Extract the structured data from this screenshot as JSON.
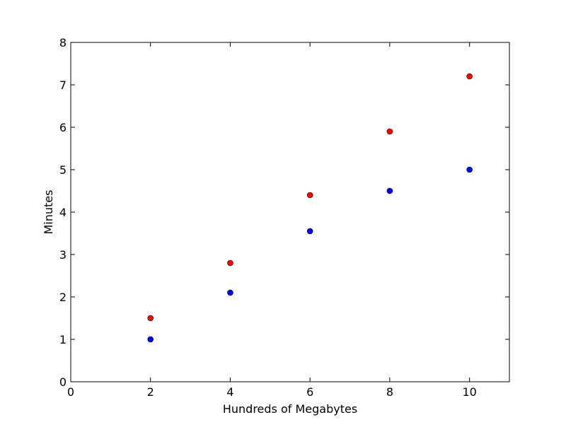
{
  "chart_data": {
    "type": "scatter",
    "title": "",
    "xlabel": "Hundreds of Megabytes",
    "ylabel": "Minutes",
    "xlim": [
      0,
      11
    ],
    "ylim": [
      0,
      8
    ],
    "xticks": [
      0,
      2,
      4,
      6,
      8,
      10
    ],
    "yticks": [
      0,
      1,
      2,
      3,
      4,
      5,
      6,
      7,
      8
    ],
    "grid": false,
    "legend": "none",
    "series": [
      {
        "color": "#ff0000",
        "points": [
          {
            "x": 2,
            "y": 1.5
          },
          {
            "x": 4,
            "y": 2.8
          },
          {
            "x": 6,
            "y": 4.4
          },
          {
            "x": 8,
            "y": 5.9
          },
          {
            "x": 10,
            "y": 7.2
          }
        ]
      },
      {
        "color": "#0000ff",
        "points": [
          {
            "x": 2,
            "y": 1.0
          },
          {
            "x": 4,
            "y": 2.1
          },
          {
            "x": 6,
            "y": 3.55
          },
          {
            "x": 8,
            "y": 4.5
          },
          {
            "x": 10,
            "y": 5.0
          }
        ]
      }
    ]
  }
}
